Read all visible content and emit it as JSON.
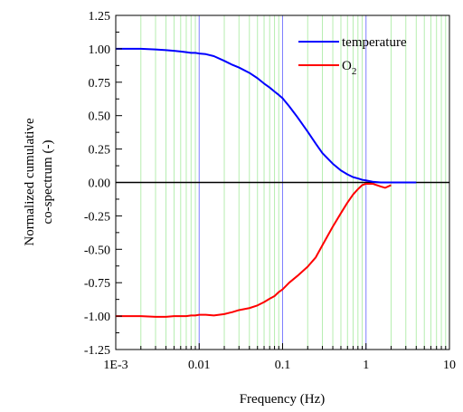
{
  "chart_data": {
    "type": "line",
    "title": "",
    "xlabel": "Frequency  (Hz)",
    "ylabel_line1": "Normalized cumulative",
    "ylabel_line2": "co-spectrum  (-)",
    "x_scale": "log",
    "xlim": [
      0.001,
      10
    ],
    "ylim": [
      -1.25,
      1.25
    ],
    "x_ticks": [
      {
        "value": 0.001,
        "label": "1E-3"
      },
      {
        "value": 0.01,
        "label": "0.01"
      },
      {
        "value": 0.1,
        "label": "0.1"
      },
      {
        "value": 1,
        "label": "1"
      },
      {
        "value": 10,
        "label": "10"
      }
    ],
    "y_ticks": [
      {
        "value": 1.25,
        "label": "1.25"
      },
      {
        "value": 1.0,
        "label": "1.00"
      },
      {
        "value": 0.75,
        "label": "0.75"
      },
      {
        "value": 0.5,
        "label": "0.50"
      },
      {
        "value": 0.25,
        "label": "0.25"
      },
      {
        "value": 0.0,
        "label": "0.00"
      },
      {
        "value": -0.25,
        "label": "-0.25"
      },
      {
        "value": -0.5,
        "label": "-0.50"
      },
      {
        "value": -0.75,
        "label": "-0.75"
      },
      {
        "value": -1.0,
        "label": "-1.00"
      },
      {
        "value": -1.25,
        "label": "-1.25"
      }
    ],
    "grid": "vertical minor lines green, decade lines blue",
    "grid_minor_color": "#b6eeb0",
    "grid_major_color": "#7f7fff",
    "zero_line": true,
    "legend_position": "top-right",
    "series": [
      {
        "name": "temperature",
        "color": "#0000ff",
        "x": [
          0.001,
          0.0015,
          0.002,
          0.003,
          0.004,
          0.005,
          0.006,
          0.007,
          0.008,
          0.009,
          0.01,
          0.012,
          0.015,
          0.02,
          0.025,
          0.03,
          0.04,
          0.05,
          0.06,
          0.07,
          0.08,
          0.09,
          0.1,
          0.12,
          0.15,
          0.2,
          0.25,
          0.3,
          0.4,
          0.5,
          0.6,
          0.7,
          0.8,
          0.9,
          1.0,
          1.2,
          1.5,
          2.0,
          2.5,
          3.0,
          4.0
        ],
        "y": [
          1.0,
          1.0,
          1.0,
          0.995,
          0.99,
          0.985,
          0.98,
          0.975,
          0.97,
          0.97,
          0.965,
          0.96,
          0.945,
          0.91,
          0.88,
          0.86,
          0.82,
          0.78,
          0.74,
          0.71,
          0.68,
          0.655,
          0.63,
          0.57,
          0.49,
          0.38,
          0.29,
          0.22,
          0.14,
          0.09,
          0.06,
          0.04,
          0.03,
          0.02,
          0.015,
          0.005,
          0.0,
          0.0,
          0.0,
          0.0,
          0.0
        ]
      },
      {
        "name": "O",
        "name_subscript": "2",
        "color": "#ff0000",
        "x": [
          0.001,
          0.0015,
          0.002,
          0.003,
          0.004,
          0.005,
          0.006,
          0.007,
          0.008,
          0.009,
          0.01,
          0.012,
          0.015,
          0.02,
          0.025,
          0.03,
          0.04,
          0.05,
          0.06,
          0.07,
          0.08,
          0.09,
          0.1,
          0.12,
          0.15,
          0.2,
          0.25,
          0.3,
          0.4,
          0.5,
          0.6,
          0.7,
          0.8,
          0.9,
          1.0,
          1.2,
          1.5,
          1.7,
          2.0
        ],
        "y": [
          -1.0,
          -1.0,
          -1.0,
          -1.005,
          -1.005,
          -1.0,
          -1.0,
          -1.0,
          -0.995,
          -0.995,
          -0.99,
          -0.99,
          -0.995,
          -0.985,
          -0.97,
          -0.955,
          -0.94,
          -0.92,
          -0.895,
          -0.87,
          -0.85,
          -0.82,
          -0.8,
          -0.75,
          -0.7,
          -0.63,
          -0.56,
          -0.47,
          -0.33,
          -0.23,
          -0.15,
          -0.09,
          -0.05,
          -0.02,
          -0.01,
          -0.01,
          -0.03,
          -0.04,
          -0.02
        ]
      }
    ]
  }
}
